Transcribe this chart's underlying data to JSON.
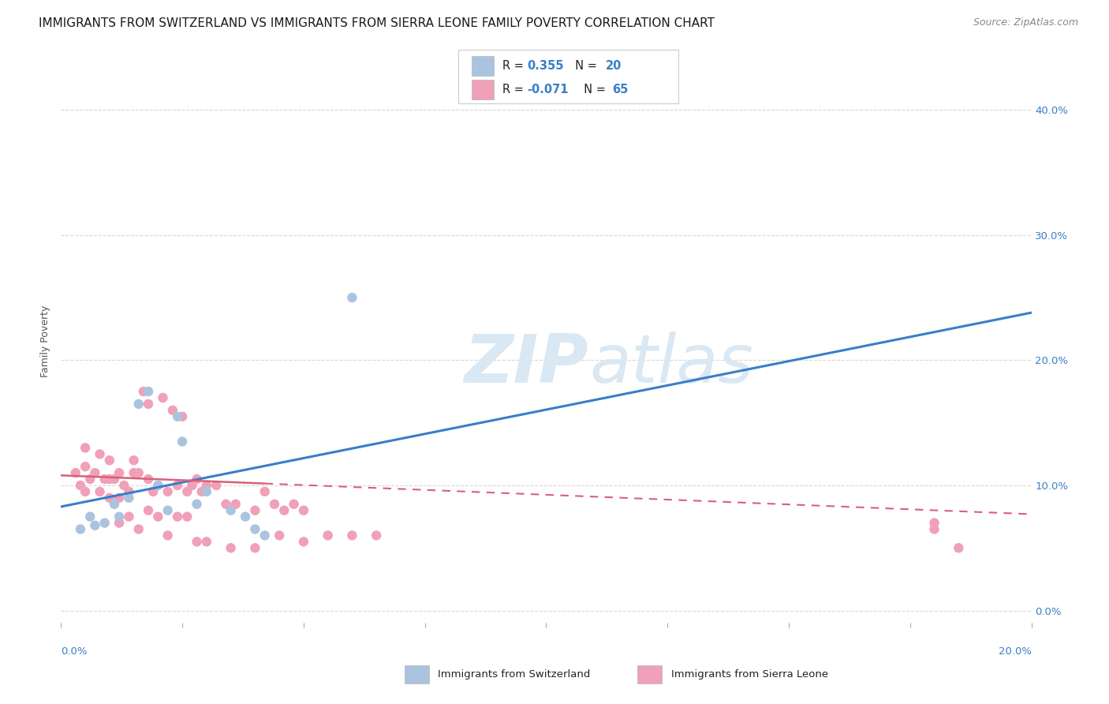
{
  "title": "IMMIGRANTS FROM SWITZERLAND VS IMMIGRANTS FROM SIERRA LEONE FAMILY POVERTY CORRELATION CHART",
  "source": "Source: ZipAtlas.com",
  "ylabel": "Family Poverty",
  "ytick_labels": [
    "0.0%",
    "10.0%",
    "20.0%",
    "30.0%",
    "40.0%"
  ],
  "ytick_values": [
    0.0,
    0.1,
    0.2,
    0.3,
    0.4
  ],
  "xlim": [
    0.0,
    0.2
  ],
  "ylim": [
    -0.01,
    0.44
  ],
  "legend_series1": "Immigrants from Switzerland",
  "legend_series2": "Immigrants from Sierra Leone",
  "color_swiss_fill": "#aac4e0",
  "color_swiss_line": "#3a7ec8",
  "color_sierra_fill": "#f0a0b8",
  "color_sierra_line": "#d8607a",
  "watermark_zip": "ZIP",
  "watermark_atlas": "atlas",
  "swiss_scatter_x": [
    0.004,
    0.006,
    0.007,
    0.009,
    0.011,
    0.012,
    0.014,
    0.016,
    0.018,
    0.02,
    0.022,
    0.024,
    0.025,
    0.028,
    0.03,
    0.035,
    0.038,
    0.04,
    0.042,
    0.06
  ],
  "swiss_scatter_y": [
    0.065,
    0.075,
    0.068,
    0.07,
    0.085,
    0.075,
    0.09,
    0.165,
    0.175,
    0.1,
    0.08,
    0.155,
    0.135,
    0.085,
    0.095,
    0.08,
    0.075,
    0.065,
    0.06,
    0.25
  ],
  "sierra_scatter_x": [
    0.003,
    0.004,
    0.005,
    0.005,
    0.005,
    0.006,
    0.007,
    0.008,
    0.008,
    0.009,
    0.01,
    0.01,
    0.01,
    0.011,
    0.012,
    0.012,
    0.013,
    0.014,
    0.015,
    0.015,
    0.016,
    0.017,
    0.018,
    0.018,
    0.019,
    0.02,
    0.021,
    0.022,
    0.023,
    0.024,
    0.025,
    0.026,
    0.027,
    0.028,
    0.029,
    0.03,
    0.032,
    0.034,
    0.036,
    0.04,
    0.042,
    0.044,
    0.046,
    0.048,
    0.05,
    0.055,
    0.06,
    0.065,
    0.012,
    0.014,
    0.016,
    0.018,
    0.02,
    0.022,
    0.024,
    0.026,
    0.028,
    0.03,
    0.035,
    0.04,
    0.045,
    0.05,
    0.18,
    0.18,
    0.185
  ],
  "sierra_scatter_y": [
    0.11,
    0.1,
    0.095,
    0.115,
    0.13,
    0.105,
    0.11,
    0.095,
    0.125,
    0.105,
    0.09,
    0.105,
    0.12,
    0.105,
    0.09,
    0.11,
    0.1,
    0.095,
    0.11,
    0.12,
    0.11,
    0.175,
    0.105,
    0.165,
    0.095,
    0.1,
    0.17,
    0.095,
    0.16,
    0.1,
    0.155,
    0.095,
    0.1,
    0.105,
    0.095,
    0.1,
    0.1,
    0.085,
    0.085,
    0.08,
    0.095,
    0.085,
    0.08,
    0.085,
    0.08,
    0.06,
    0.06,
    0.06,
    0.07,
    0.075,
    0.065,
    0.08,
    0.075,
    0.06,
    0.075,
    0.075,
    0.055,
    0.055,
    0.05,
    0.05,
    0.06,
    0.055,
    0.07,
    0.065,
    0.05
  ],
  "swiss_line_x": [
    0.0,
    0.2
  ],
  "swiss_line_y": [
    0.083,
    0.238
  ],
  "sierra_line_x": [
    0.0,
    0.2
  ],
  "sierra_line_y": [
    0.108,
    0.077
  ],
  "background_color": "#ffffff",
  "grid_color": "#d8d8d8",
  "title_fontsize": 11,
  "source_fontsize": 9,
  "ylabel_fontsize": 9,
  "tick_fontsize": 9.5,
  "legend_fontsize": 10.5,
  "dot_size": 80
}
